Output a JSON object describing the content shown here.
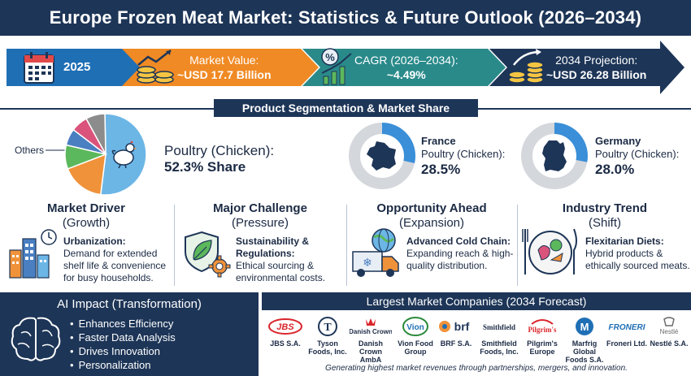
{
  "title": "Europe Frozen Meat Market: Statistics & Future Outlook (2026–2034)",
  "timeline": {
    "year": "2025",
    "market_value_label": "Market Value:",
    "market_value": "~USD 17.7 Billion",
    "cagr_label": "CAGR (2026–2034):",
    "cagr_value": "~4.49%",
    "projection_label": "2034 Projection:",
    "projection_value": "~USD 26.28 Billion",
    "colors": {
      "arrow1": "#1f6fb5",
      "arrow2": "#f08a24",
      "arrow3": "#2a8a8a",
      "arrow4": "#1d3557"
    }
  },
  "segmentation": {
    "header": "Product Segmentation & Market Share",
    "others_label": "Others",
    "poultry_label": "Poultry (Chicken):",
    "poultry_share": "52.3% Share",
    "poultry_percent": 52.3,
    "pie_colors": [
      "#6cb6e6",
      "#f0923a",
      "#5cb85c",
      "#4a7fc1",
      "#d9537b",
      "#8c8c8c"
    ],
    "france": {
      "name": "France",
      "label": "Poultry (Chicken):",
      "value": "28.5%",
      "percent": 28.5
    },
    "germany": {
      "name": "Germany",
      "label": "Poultry (Chicken):",
      "value": "28.0%",
      "percent": 28.0
    }
  },
  "cards": [
    {
      "title": "Market Driver",
      "subtitle": "(Growth)",
      "bold": "Urbanization:",
      "text": "Demand for extended shelf life & convenience for busy households.",
      "icon": "city-clock-icon"
    },
    {
      "title": "Major Challenge",
      "subtitle": "(Pressure)",
      "bold": "Sustainability & Regulations:",
      "text": "Ethical sourcing & environmental costs.",
      "icon": "shield-leaf-gear-icon"
    },
    {
      "title": "Opportunity Ahead",
      "subtitle": "(Expansion)",
      "bold": "Advanced Cold Chain:",
      "text": "Expanding reach & high-quality distribution.",
      "icon": "globe-truck-icon"
    },
    {
      "title": "Industry Trend",
      "subtitle": "(Shift)",
      "bold": "Flexitarian Diets:",
      "text": "Hybrid products & ethically sourced meats.",
      "icon": "plate-cutlery-icon"
    }
  ],
  "ai": {
    "header": "AI Impact (Transformation)",
    "items": [
      "Enhances Efficiency",
      "Faster Data Analysis",
      "Drives Innovation",
      "Personalization"
    ]
  },
  "companies": {
    "header": "Largest Market Companies (2034 Forecast)",
    "list": [
      {
        "logo": "JBS",
        "name": "JBS S.A."
      },
      {
        "logo": "T",
        "name": "Tyson Foods, Inc."
      },
      {
        "logo": "Danish Crown",
        "name": "Danish Crown AmbA"
      },
      {
        "logo": "Vion",
        "name": "Vion Food Group"
      },
      {
        "logo": "brf",
        "name": "BRF S.A."
      },
      {
        "logo": "Smithfield",
        "name": "Smithfield Foods, Inc."
      },
      {
        "logo": "Pilgrim's",
        "name": "Pilgrim's Europe"
      },
      {
        "logo": "M",
        "name": "Marfrig Global Foods S.A."
      },
      {
        "logo": "FRONERI",
        "name": "Froneri Ltd."
      },
      {
        "logo": "Nestlé",
        "name": "Nestlé S.A."
      }
    ],
    "footer": "Generating highest market revenues through partnerships, mergers, and innovation."
  }
}
